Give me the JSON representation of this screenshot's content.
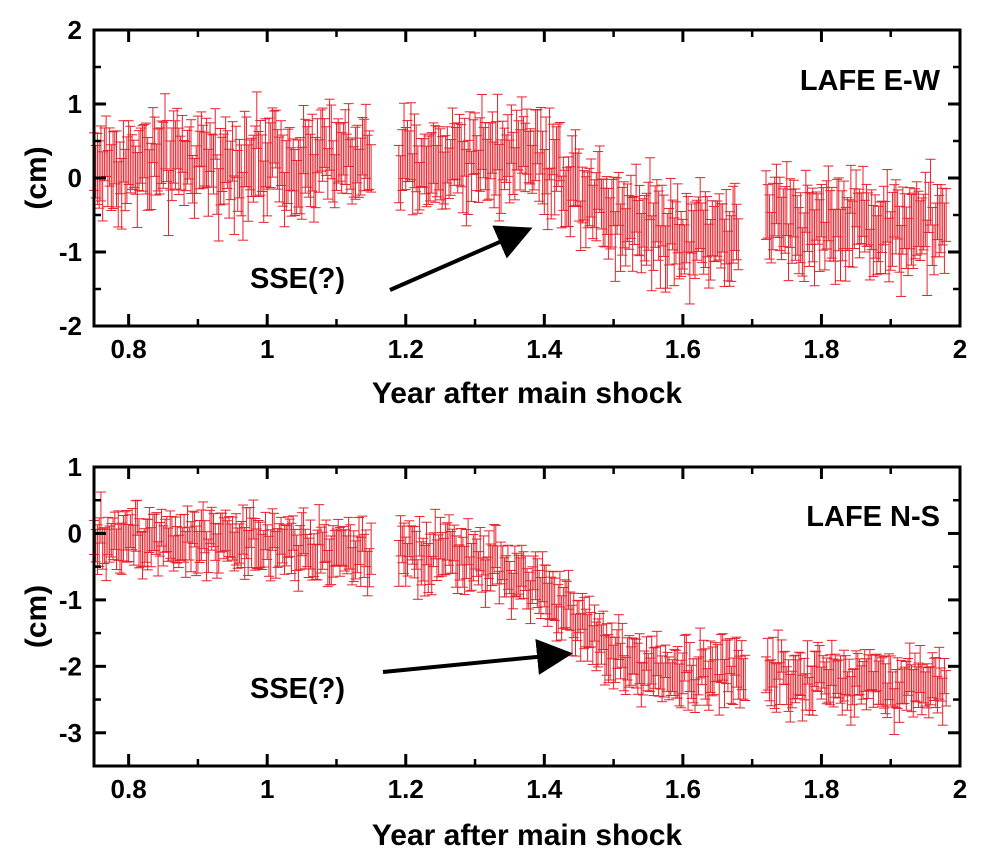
{
  "chart_data": [
    {
      "type": "scatter",
      "title": "",
      "panel_label": "LAFE E-W",
      "xlabel": "Year after main shock",
      "ylabel": "(cm)",
      "xlim": [
        0.75,
        2.0
      ],
      "ylim": [
        -2,
        2
      ],
      "xticks": [
        "0.8",
        "1",
        "1.2",
        "1.4",
        "1.6",
        "1.8",
        "2"
      ],
      "xtick_values": [
        0.8,
        1.0,
        1.2,
        1.4,
        1.6,
        1.8,
        2.0
      ],
      "yticks": [
        "-2",
        "-1",
        "0",
        "1",
        "2"
      ],
      "ytick_values": [
        -2,
        -1,
        0,
        1,
        2
      ],
      "color": "#e8212b",
      "error_bar": 0.4,
      "segments": [
        {
          "x_start": 0.75,
          "x_end": 1.15
        },
        {
          "x_start": 1.19,
          "x_end": 1.68
        },
        {
          "x_start": 1.72,
          "x_end": 1.98
        }
      ],
      "trend": [
        {
          "x": 0.75,
          "y": 0.15
        },
        {
          "x": 0.95,
          "y": 0.2
        },
        {
          "x": 1.15,
          "y": 0.25
        },
        {
          "x": 1.19,
          "y": 0.1
        },
        {
          "x": 1.3,
          "y": 0.3
        },
        {
          "x": 1.37,
          "y": 0.4
        },
        {
          "x": 1.43,
          "y": 0.0
        },
        {
          "x": 1.5,
          "y": -0.45
        },
        {
          "x": 1.6,
          "y": -0.75
        },
        {
          "x": 1.68,
          "y": -0.75
        },
        {
          "x": 1.72,
          "y": -0.6
        },
        {
          "x": 1.85,
          "y": -0.6
        },
        {
          "x": 1.98,
          "y": -0.7
        }
      ],
      "annotation": {
        "text": "SSE(?)",
        "arrow_to": {
          "x": 1.37,
          "y": -0.72
        },
        "arrow_from": {
          "x": 1.12,
          "y": -1.5
        }
      }
    },
    {
      "type": "scatter",
      "title": "",
      "panel_label": "LAFE N-S",
      "xlabel": "Year after main shock",
      "ylabel": "(cm)",
      "xlim": [
        0.75,
        2.0
      ],
      "ylim": [
        -3.5,
        1
      ],
      "xticks": [
        "0.8",
        "1",
        "1.2",
        "1.4",
        "1.6",
        "1.8",
        "2"
      ],
      "xtick_values": [
        0.8,
        1.0,
        1.2,
        1.4,
        1.6,
        1.8,
        2.0
      ],
      "yticks": [
        "-3",
        "-2",
        "-1",
        "0",
        "1"
      ],
      "ytick_values": [
        -3,
        -2,
        -1,
        0,
        1
      ],
      "color": "#e8212b",
      "error_bar": 0.3,
      "segments": [
        {
          "x_start": 0.75,
          "x_end": 1.15
        },
        {
          "x_start": 1.19,
          "x_end": 1.69
        },
        {
          "x_start": 1.72,
          "x_end": 1.98
        }
      ],
      "trend": [
        {
          "x": 0.75,
          "y": -0.05
        },
        {
          "x": 0.9,
          "y": -0.05
        },
        {
          "x": 1.0,
          "y": -0.1
        },
        {
          "x": 1.15,
          "y": -0.3
        },
        {
          "x": 1.19,
          "y": -0.35
        },
        {
          "x": 1.3,
          "y": -0.4
        },
        {
          "x": 1.4,
          "y": -0.9
        },
        {
          "x": 1.47,
          "y": -1.5
        },
        {
          "x": 1.52,
          "y": -2.0
        },
        {
          "x": 1.6,
          "y": -2.1
        },
        {
          "x": 1.69,
          "y": -2.05
        },
        {
          "x": 1.72,
          "y": -2.1
        },
        {
          "x": 1.85,
          "y": -2.2
        },
        {
          "x": 1.98,
          "y": -2.3
        }
      ],
      "annotation": {
        "text": "SSE(?)",
        "arrow_to": {
          "x": 1.44,
          "y": -1.8
        },
        "arrow_from": {
          "x": 1.16,
          "y": -2.15
        }
      }
    }
  ]
}
